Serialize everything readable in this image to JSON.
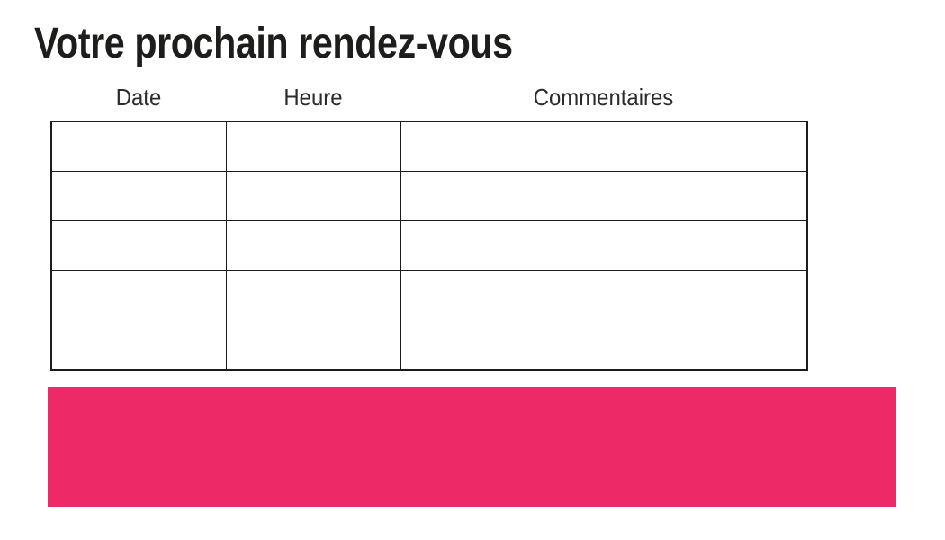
{
  "page": {
    "title": "Votre prochain rendez-vous"
  },
  "table": {
    "headers": [
      "Date",
      "Heure",
      "Commentaires"
    ],
    "rows": [
      [
        "",
        "",
        ""
      ],
      [
        "",
        "",
        ""
      ],
      [
        "",
        "",
        ""
      ],
      [
        "",
        "",
        ""
      ],
      [
        "",
        "",
        ""
      ]
    ]
  },
  "colors": {
    "accent_pink": "#ED2A67",
    "table_border": "#1c1c1c",
    "title_text": "#1d1d1b"
  }
}
